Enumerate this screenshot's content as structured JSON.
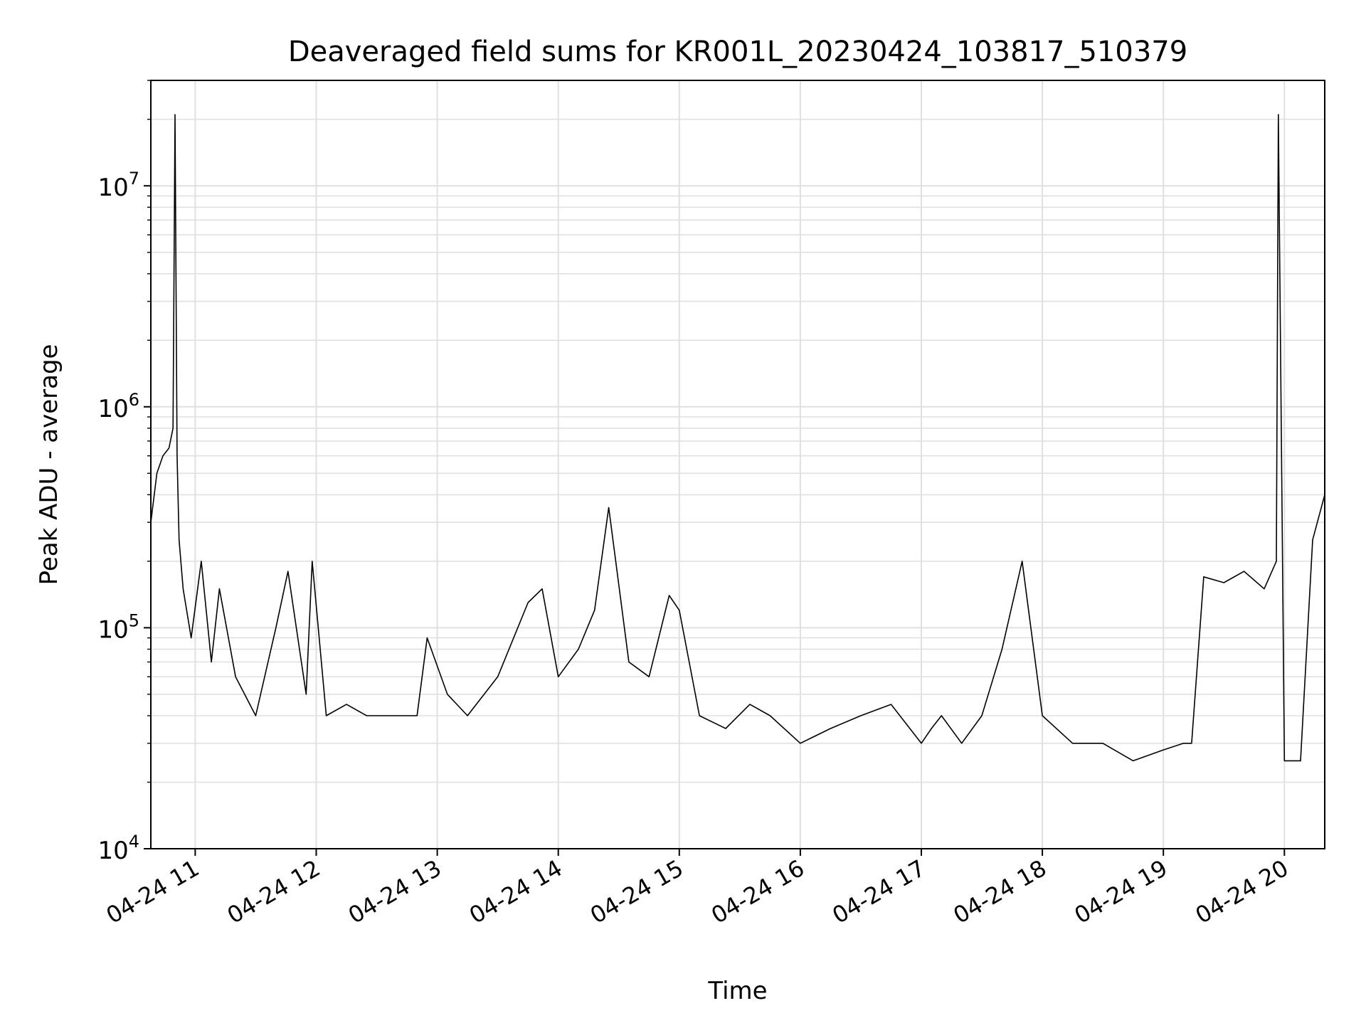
{
  "chart_data": {
    "type": "line",
    "title": "Deaveraged field sums for KR001L_20230424_103817_510379",
    "xlabel": "Time",
    "ylabel": "Peak ADU - average",
    "yscale": "log",
    "ylim": [
      10000,
      30000000
    ],
    "xlim": [
      "2023-04-24 10:38",
      "2023-04-24 20:20"
    ],
    "grid": true,
    "legend": "none",
    "line_color": "#000000",
    "grid_color": "#e0e0e0",
    "x_ticks": [
      "2023-04-24 11:00",
      "2023-04-24 12:00",
      "2023-04-24 13:00",
      "2023-04-24 14:00",
      "2023-04-24 15:00",
      "2023-04-24 16:00",
      "2023-04-24 17:00",
      "2023-04-24 18:00",
      "2023-04-24 19:00",
      "2023-04-24 20:00"
    ],
    "x_tick_labels": [
      "04-24 11",
      "04-24 12",
      "04-24 13",
      "04-24 14",
      "04-24 15",
      "04-24 16",
      "04-24 17",
      "04-24 18",
      "04-24 19",
      "04-24 20"
    ],
    "y_ticks": [
      10000,
      100000,
      1000000,
      10000000
    ],
    "y_tick_labels": [
      {
        "base": "10",
        "exp": "4"
      },
      {
        "base": "10",
        "exp": "5"
      },
      {
        "base": "10",
        "exp": "6"
      },
      {
        "base": "10",
        "exp": "7"
      }
    ],
    "series": [
      {
        "x": [
          "2023-04-24 10:38",
          "2023-04-24 10:41",
          "2023-04-24 10:44",
          "2023-04-24 10:47",
          "2023-04-24 10:49",
          "2023-04-24 10:50",
          "2023-04-24 10:51",
          "2023-04-24 10:52",
          "2023-04-24 10:54",
          "2023-04-24 10:58",
          "2023-04-24 11:03",
          "2023-04-24 11:08",
          "2023-04-24 11:12",
          "2023-04-24 11:20",
          "2023-04-24 11:30",
          "2023-04-24 11:40",
          "2023-04-24 11:46",
          "2023-04-24 11:55",
          "2023-04-24 11:58",
          "2023-04-24 12:05",
          "2023-04-24 12:15",
          "2023-04-24 12:25",
          "2023-04-24 12:40",
          "2023-04-24 12:50",
          "2023-04-24 12:55",
          "2023-04-24 13:05",
          "2023-04-24 13:15",
          "2023-04-24 13:30",
          "2023-04-24 13:45",
          "2023-04-24 13:52",
          "2023-04-24 14:00",
          "2023-04-24 14:10",
          "2023-04-24 14:18",
          "2023-04-24 14:25",
          "2023-04-24 14:35",
          "2023-04-24 14:45",
          "2023-04-24 14:55",
          "2023-04-24 15:00",
          "2023-04-24 15:10",
          "2023-04-24 15:23",
          "2023-04-24 15:35",
          "2023-04-24 15:45",
          "2023-04-24 16:00",
          "2023-04-24 16:15",
          "2023-04-24 16:30",
          "2023-04-24 16:45",
          "2023-04-24 17:00",
          "2023-04-24 17:05",
          "2023-04-24 17:10",
          "2023-04-24 17:20",
          "2023-04-24 17:30",
          "2023-04-24 17:40",
          "2023-04-24 17:50",
          "2023-04-24 18:00",
          "2023-04-24 18:15",
          "2023-04-24 18:30",
          "2023-04-24 18:45",
          "2023-04-24 19:00",
          "2023-04-24 19:10",
          "2023-04-24 19:14",
          "2023-04-24 19:20",
          "2023-04-24 19:30",
          "2023-04-24 19:40",
          "2023-04-24 19:50",
          "2023-04-24 19:56",
          "2023-04-24 19:57",
          "2023-04-24 20:00",
          "2023-04-24 20:08",
          "2023-04-24 20:14",
          "2023-04-24 20:20"
        ],
        "y": [
          300000,
          500000,
          600000,
          650000,
          800000,
          21000000,
          600000,
          250000,
          150000,
          90000,
          200000,
          70000,
          150000,
          60000,
          40000,
          100000,
          180000,
          50000,
          200000,
          40000,
          45000,
          40000,
          40000,
          40000,
          90000,
          50000,
          40000,
          60000,
          130000,
          150000,
          60000,
          80000,
          120000,
          350000,
          70000,
          60000,
          140000,
          120000,
          40000,
          35000,
          45000,
          40000,
          30000,
          35000,
          40000,
          45000,
          30000,
          35000,
          40000,
          30000,
          40000,
          80000,
          200000,
          40000,
          30000,
          30000,
          25000,
          28000,
          30000,
          30000,
          170000,
          160000,
          180000,
          150000,
          200000,
          21000000,
          25000,
          25000,
          250000,
          400000
        ]
      }
    ]
  }
}
